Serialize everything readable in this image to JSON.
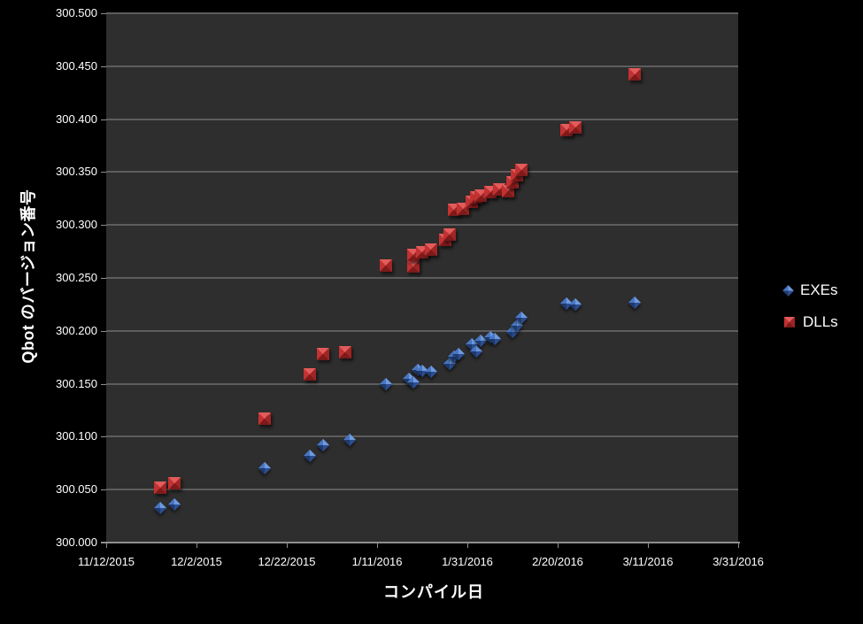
{
  "chart_data": {
    "type": "scatter",
    "title": "",
    "xlabel": "コンパイル日",
    "ylabel": "Qbot のバージョン番号",
    "x_ticks": [
      "11/12/2015",
      "12/2/2015",
      "12/22/2015",
      "1/11/2016",
      "1/31/2016",
      "2/20/2016",
      "3/11/2016",
      "3/31/2016"
    ],
    "x_range": [
      "11/12/2015",
      "3/31/2016"
    ],
    "ylim": [
      300.0,
      300.5
    ],
    "y_tick_step": 0.05,
    "y_tick_decimals": 3,
    "grid": true,
    "legend_position": "right",
    "colors": {
      "page_background": "#000000",
      "plot_background": "#2e2e2e",
      "gridline": "#5d5d5d",
      "axis_text": "#ffffff",
      "exes_blue": "#3e6db8",
      "dlls_red": "#c02f2f"
    },
    "series": [
      {
        "name": "EXEs",
        "marker": "diamond",
        "color": "#3e6db8",
        "points": [
          {
            "x": "11/24/2015",
            "y": 300.033
          },
          {
            "x": "11/27/2015",
            "y": 300.036
          },
          {
            "x": "12/17/2015",
            "y": 300.07
          },
          {
            "x": "12/27/2015",
            "y": 300.082
          },
          {
            "x": "12/30/2015",
            "y": 300.092
          },
          {
            "x": "1/5/2016",
            "y": 300.097
          },
          {
            "x": "1/13/2016",
            "y": 300.15
          },
          {
            "x": "1/18/2016",
            "y": 300.155
          },
          {
            "x": "1/19/2016",
            "y": 300.151
          },
          {
            "x": "1/20/2016",
            "y": 300.163
          },
          {
            "x": "1/21/2016",
            "y": 300.162
          },
          {
            "x": "1/23/2016",
            "y": 300.161
          },
          {
            "x": "1/27/2016",
            "y": 300.169
          },
          {
            "x": "1/28/2016",
            "y": 300.176
          },
          {
            "x": "1/29/2016",
            "y": 300.178
          },
          {
            "x": "2/1/2016",
            "y": 300.187
          },
          {
            "x": "2/2/2016",
            "y": 300.181
          },
          {
            "x": "2/3/2016",
            "y": 300.191
          },
          {
            "x": "2/5/2016",
            "y": 300.194
          },
          {
            "x": "2/6/2016",
            "y": 300.192
          },
          {
            "x": "2/10/2016",
            "y": 300.199
          },
          {
            "x": "2/11/2016",
            "y": 300.205
          },
          {
            "x": "2/12/2016",
            "y": 300.212
          },
          {
            "x": "2/22/2016",
            "y": 300.226
          },
          {
            "x": "2/24/2016",
            "y": 300.225
          },
          {
            "x": "3/8/2016",
            "y": 300.227
          }
        ]
      },
      {
        "name": "DLLs",
        "marker": "square",
        "color": "#c02f2f",
        "points": [
          {
            "x": "11/24/2015",
            "y": 300.052
          },
          {
            "x": "11/27/2015",
            "y": 300.056
          },
          {
            "x": "12/17/2015",
            "y": 300.117
          },
          {
            "x": "12/27/2015",
            "y": 300.159
          },
          {
            "x": "12/30/2015",
            "y": 300.178
          },
          {
            "x": "1/4/2016",
            "y": 300.18
          },
          {
            "x": "1/13/2016",
            "y": 300.262
          },
          {
            "x": "1/19/2016",
            "y": 300.261
          },
          {
            "x": "1/19/2016",
            "y": 300.272
          },
          {
            "x": "1/21/2016",
            "y": 300.274
          },
          {
            "x": "1/23/2016",
            "y": 300.277
          },
          {
            "x": "1/26/2016",
            "y": 300.286
          },
          {
            "x": "1/27/2016",
            "y": 300.291
          },
          {
            "x": "1/28/2016",
            "y": 300.314
          },
          {
            "x": "1/30/2016",
            "y": 300.315
          },
          {
            "x": "2/1/2016",
            "y": 300.322
          },
          {
            "x": "2/2/2016",
            "y": 300.326
          },
          {
            "x": "2/3/2016",
            "y": 300.328
          },
          {
            "x": "2/5/2016",
            "y": 300.331
          },
          {
            "x": "2/7/2016",
            "y": 300.334
          },
          {
            "x": "2/9/2016",
            "y": 300.332
          },
          {
            "x": "2/10/2016",
            "y": 300.34
          },
          {
            "x": "2/11/2016",
            "y": 300.347
          },
          {
            "x": "2/12/2016",
            "y": 300.352
          },
          {
            "x": "2/22/2016",
            "y": 300.39
          },
          {
            "x": "2/24/2016",
            "y": 300.392
          },
          {
            "x": "3/8/2016",
            "y": 300.442
          }
        ]
      }
    ]
  },
  "legend": {
    "items": [
      {
        "label": "EXEs"
      },
      {
        "label": "DLLs"
      }
    ]
  }
}
